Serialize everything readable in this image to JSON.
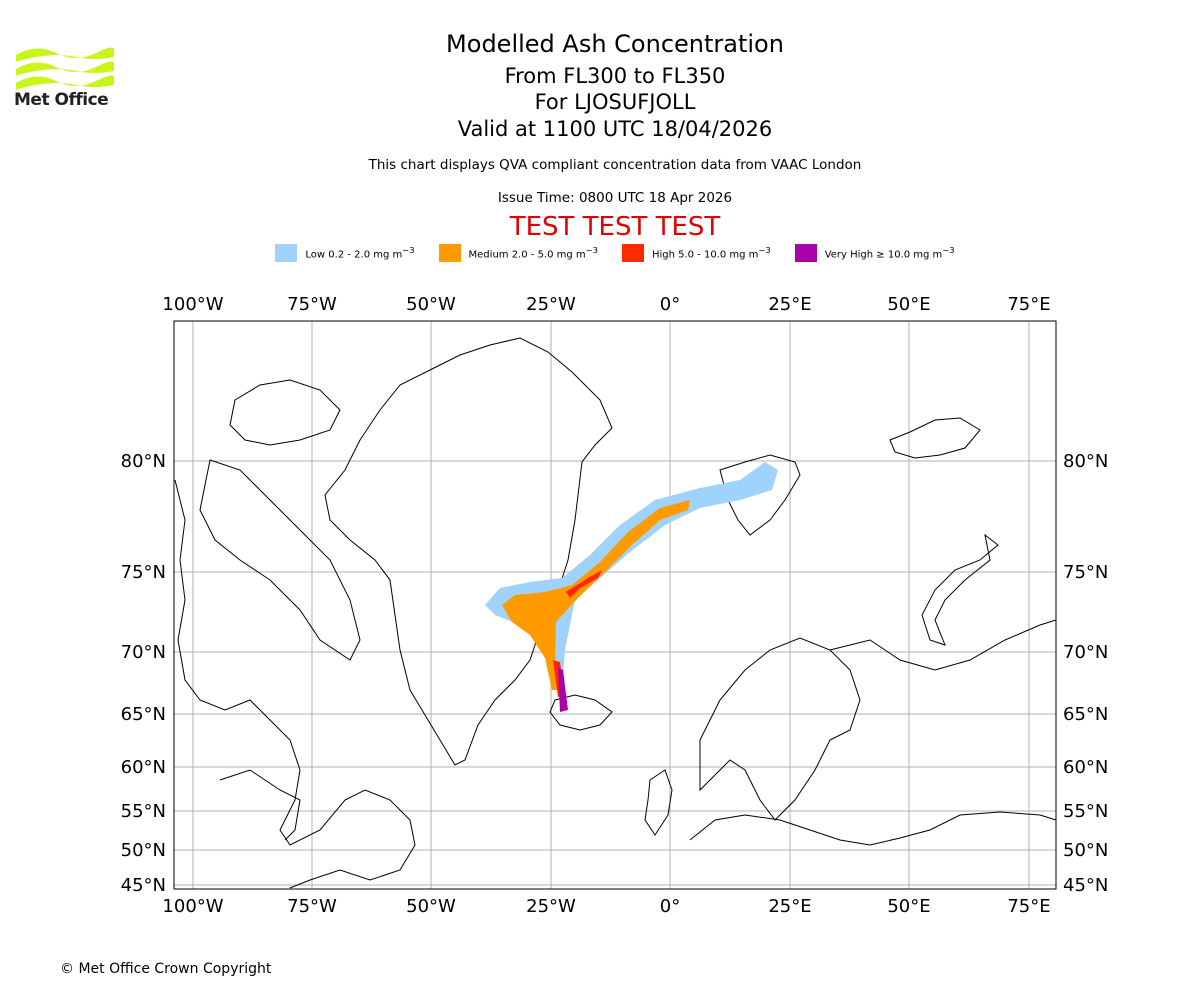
{
  "brand": {
    "name": "Met Office",
    "logo_icon": "met-office-wave-logo",
    "logo_color": "#c8f51a"
  },
  "title": "Modelled Ash Concentration",
  "subtitle_levels": "From FL300 to FL350",
  "subtitle_source": "For LJOSUFJOLL",
  "subtitle_valid": "Valid at 1100 UTC 18/04/2026",
  "description": "This chart displays QVA compliant concentration data from VAAC London",
  "issue_time": "Issue Time: 0800 UTC 18 Apr 2026",
  "test_banner": "TEST TEST TEST",
  "legend": [
    {
      "label": "Low 0.2 - 2.0 mg m",
      "unit_exp": "−3",
      "color": "#9fd3fb"
    },
    {
      "label": "Medium 2.0 - 5.0 mg m",
      "unit_exp": "−3",
      "color": "#ff9b00"
    },
    {
      "label": "High 5.0 - 10.0 mg m",
      "unit_exp": "−3",
      "color": "#ff2a00"
    },
    {
      "label": "Very High  ≥  10.0 mg m",
      "unit_exp": "−3",
      "color": "#aa00aa"
    }
  ],
  "map": {
    "lon_ticks": [
      "100°W",
      "75°W",
      "50°W",
      "25°W",
      "0°",
      "25°E",
      "50°E",
      "75°E"
    ],
    "lat_ticks": [
      "80°N",
      "75°N",
      "70°N",
      "65°N",
      "60°N",
      "55°N",
      "50°N",
      "45°N"
    ],
    "grid": true
  },
  "copyright": "© Met Office Crown Copyright"
}
